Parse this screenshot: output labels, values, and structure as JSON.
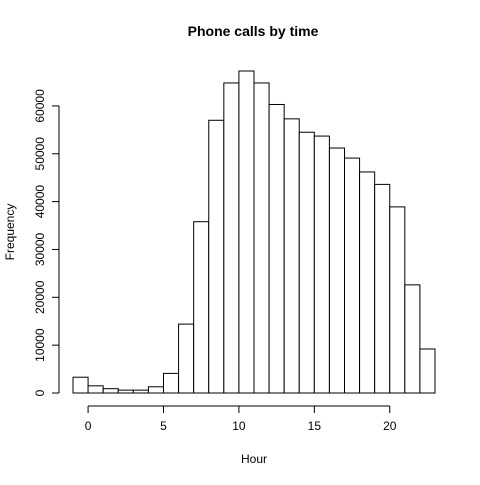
{
  "chart_data": {
    "type": "bar",
    "title": "Phone calls by time",
    "xlabel": "Hour",
    "ylabel": "Frequency",
    "bin_edges": [
      -1,
      0,
      1,
      2,
      3,
      4,
      5,
      6,
      7,
      8,
      9,
      10,
      11,
      12,
      13,
      14,
      15,
      16,
      17,
      18,
      19,
      20,
      21,
      22,
      23
    ],
    "values": [
      3300,
      1500,
      900,
      600,
      600,
      1300,
      4100,
      14400,
      35800,
      57000,
      64800,
      67300,
      64800,
      60300,
      57300,
      54500,
      53700,
      51200,
      49100,
      46200,
      43600,
      38900,
      22600,
      9200
    ],
    "xlim": [
      -1,
      23
    ],
    "ylim": [
      0,
      67300
    ],
    "x_ticks": [
      0,
      5,
      10,
      15,
      20
    ],
    "x_tick_labels": [
      "0",
      "5",
      "10",
      "15",
      "20"
    ],
    "y_ticks": [
      0,
      10000,
      20000,
      30000,
      40000,
      50000,
      60000
    ],
    "y_tick_labels": [
      "0",
      "10000",
      "20000",
      "30000",
      "40000",
      "50000",
      "60000"
    ],
    "grid": false,
    "legend": "none",
    "bar_fill": "#ffffff",
    "bar_stroke": "#000000"
  }
}
